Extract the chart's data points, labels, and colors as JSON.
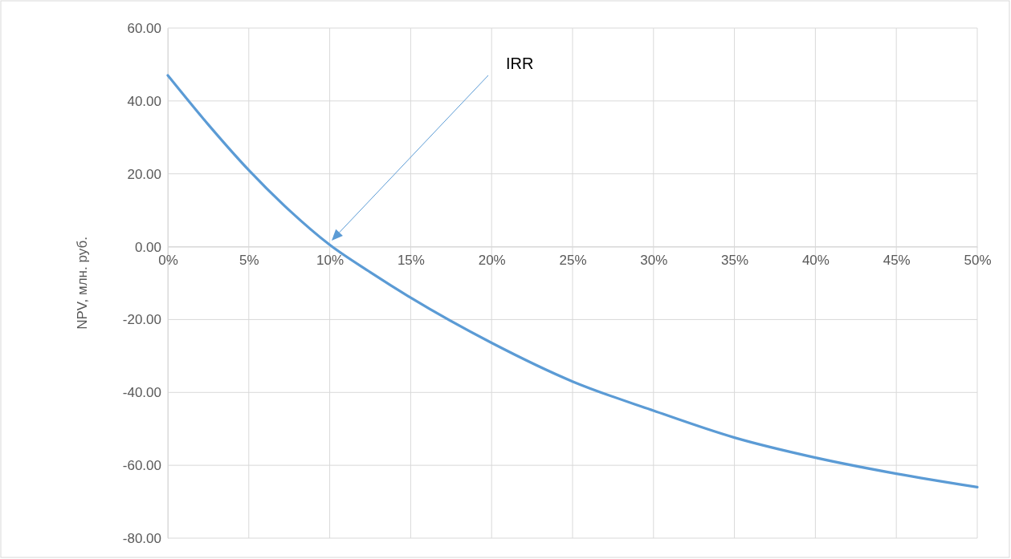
{
  "chart_data": {
    "type": "line",
    "ylabel": "NPV, млн. руб.",
    "x": [
      0,
      2.5,
      5,
      7.5,
      10,
      12.5,
      15,
      20,
      25,
      30,
      35,
      40,
      45,
      50
    ],
    "series": [
      {
        "color": "#5b9bd5",
        "values": [
          47,
          33.5,
          21,
          10,
          0.5,
          -7,
          -14,
          -26.4,
          -37,
          -45,
          -52.4,
          -57.9,
          -62.3,
          -66
        ]
      }
    ],
    "xlim": [
      0,
      50
    ],
    "xticks": [
      {
        "value": 0,
        "label": "0%"
      },
      {
        "value": 5,
        "label": "5%"
      },
      {
        "value": 10,
        "label": "10%"
      },
      {
        "value": 15,
        "label": "15%"
      },
      {
        "value": 20,
        "label": "20%"
      },
      {
        "value": 25,
        "label": "25%"
      },
      {
        "value": 30,
        "label": "30%"
      },
      {
        "value": 35,
        "label": "35%"
      },
      {
        "value": 40,
        "label": "40%"
      },
      {
        "value": 45,
        "label": "45%"
      },
      {
        "value": 50,
        "label": "50%"
      }
    ],
    "ylim": [
      -80,
      60
    ],
    "yticks": [
      {
        "value": -80,
        "label": "-80.00"
      },
      {
        "value": -60,
        "label": "-60.00"
      },
      {
        "value": -40,
        "label": "-40.00"
      },
      {
        "value": -20,
        "label": "-20.00"
      },
      {
        "value": 0,
        "label": "0.00"
      },
      {
        "value": 20,
        "label": "20.00"
      },
      {
        "value": 40,
        "label": "40.00"
      },
      {
        "value": 60,
        "label": "60.00"
      }
    ],
    "grid": true,
    "marker": "none",
    "line_style": "solid",
    "annotations": [
      "IRR"
    ]
  }
}
